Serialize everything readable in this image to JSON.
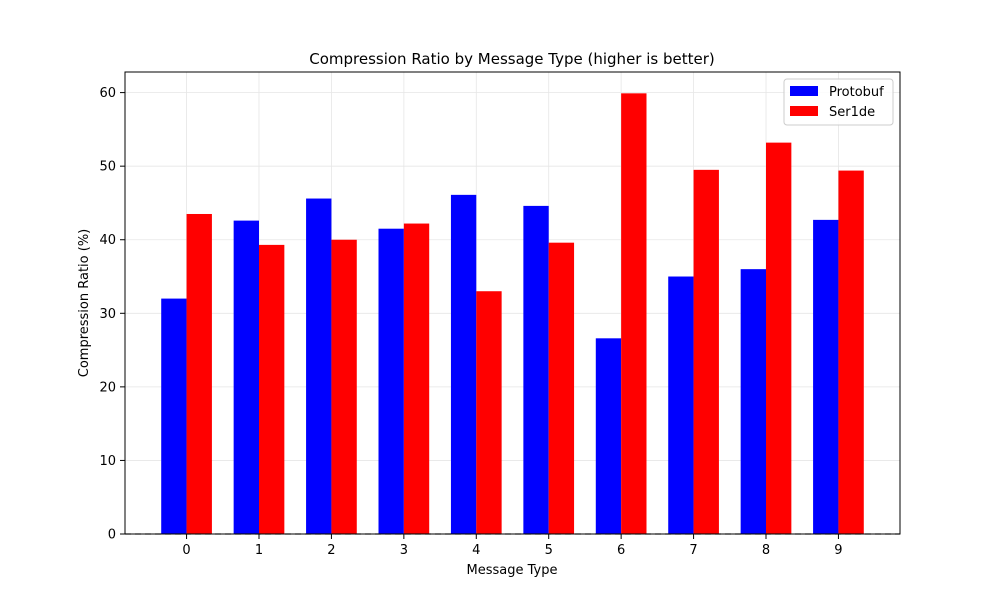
{
  "chart_data": {
    "type": "bar",
    "title": "Compression Ratio by Message Type (higher is better)",
    "xlabel": "Message Type",
    "ylabel": "Compression Ratio (%)",
    "categories": [
      "0",
      "1",
      "2",
      "3",
      "4",
      "5",
      "6",
      "7",
      "8",
      "9"
    ],
    "series": [
      {
        "name": "Protobuf",
        "color": "#0000ff",
        "values": [
          32.0,
          42.6,
          45.6,
          41.5,
          46.1,
          44.6,
          26.6,
          35.0,
          36.0,
          42.7
        ]
      },
      {
        "name": "Ser1de",
        "color": "#ff0000",
        "values": [
          43.5,
          39.3,
          40.0,
          42.2,
          33.0,
          39.6,
          59.9,
          49.5,
          53.2,
          49.4
        ]
      }
    ],
    "ylim": [
      0,
      62.8
    ],
    "yticks": [
      0,
      10,
      20,
      30,
      40,
      50,
      60
    ],
    "grid": true,
    "legend_position": "top-right",
    "baseline": 0
  }
}
